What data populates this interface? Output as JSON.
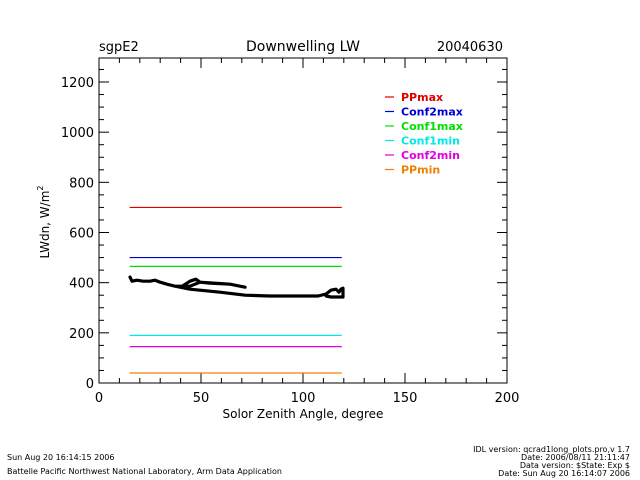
{
  "header": {
    "site": "sgpE2",
    "title": "Downwelling LW",
    "date": "20040630"
  },
  "chart_data": {
    "type": "line",
    "title": "Downwelling LW",
    "xlabel": "Solor Zenith Angle, degree",
    "ylabel_main": "LWdn,  W/m",
    "ylabel_sup": "2",
    "xlim": [
      0,
      200
    ],
    "ylim": [
      0,
      1300
    ],
    "xticks": [
      0,
      50,
      100,
      150,
      200
    ],
    "xtick_labels": [
      "0",
      "50",
      "100",
      "150",
      "200"
    ],
    "yticks": [
      0,
      200,
      400,
      600,
      800,
      1000,
      1200
    ],
    "ytick_labels": [
      "0",
      "200",
      "400",
      "600",
      "800",
      "1000",
      "1200"
    ],
    "x_minor_step": 10,
    "y_minor_step": 50,
    "grid": false,
    "legend_position": "top-right",
    "threshold_series": [
      {
        "name": "PPmax",
        "color": "#e00000",
        "x": [
          15,
          119
        ],
        "y": [
          700,
          700
        ]
      },
      {
        "name": "Conf2max",
        "color": "#0000d0",
        "x": [
          15,
          119
        ],
        "y": [
          500,
          500
        ]
      },
      {
        "name": "Conf1max",
        "color": "#00e000",
        "x": [
          15,
          119
        ],
        "y": [
          465,
          465
        ]
      },
      {
        "name": "Conf1min",
        "color": "#00e8e8",
        "x": [
          15,
          119
        ],
        "y": [
          190,
          190
        ]
      },
      {
        "name": "Conf2min",
        "color": "#e000e0",
        "x": [
          15,
          119
        ],
        "y": [
          145,
          145
        ]
      },
      {
        "name": "PPmin",
        "color": "#f08000",
        "x": [
          15,
          119
        ],
        "y": [
          40,
          40
        ]
      }
    ],
    "measured_series": {
      "name": "LWdn",
      "color": "#000000",
      "x": [
        15.2,
        16.2,
        18.6,
        21.6,
        25,
        27.5,
        30,
        33.3,
        37.3,
        40,
        44.6,
        47.5,
        49.5,
        57,
        64.2,
        71.6,
        64.2,
        54.4,
        49.5,
        44.6,
        40,
        37.3,
        44.6,
        49.5,
        59.3,
        71.6,
        83.8,
        98.5,
        107.4,
        111.3,
        113.7,
        116.2,
        117.6,
        118.6,
        119.6,
        119.6,
        113.7,
        111.3
      ],
      "y": [
        422,
        406,
        410,
        406,
        406,
        410,
        402,
        394,
        386,
        382,
        406,
        414,
        402,
        398,
        394,
        382,
        394,
        398,
        402,
        386,
        386,
        386,
        374,
        370,
        362,
        350,
        347,
        347,
        347,
        355,
        370,
        374,
        362,
        374,
        378,
        343,
        343,
        347
      ]
    }
  },
  "footer": {
    "timestamp": "Sun Aug 20 16:14:15 2006",
    "organization": "Battelle Pacific Northwest National Laboratory, Arm Data Application",
    "idl_version": "IDL version: qcrad1long_plots.pro,v 1.7",
    "code_date": "Date: 2006/08/11 21:11:47",
    "data_version": "Data version: $State: Exp $",
    "run_date": "Date: Sun Aug 20 16:14:07 2006"
  }
}
